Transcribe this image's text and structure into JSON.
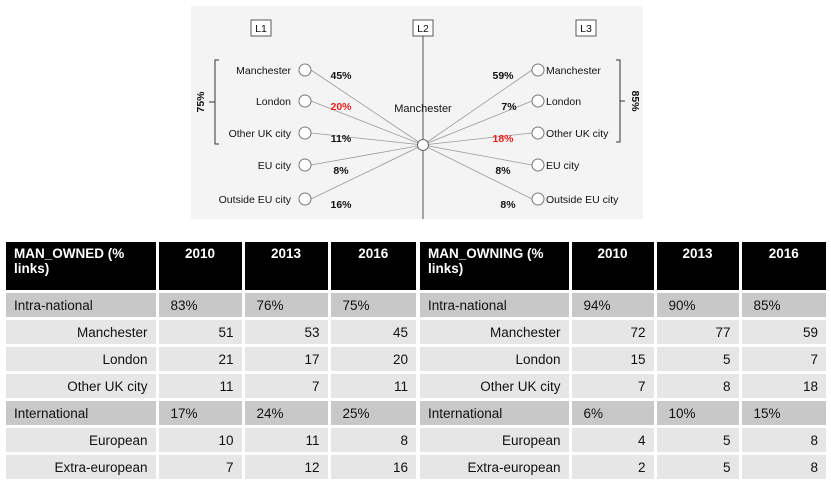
{
  "diagram": {
    "level_labels": [
      "L1",
      "L2",
      "L3"
    ],
    "center_label": "Manchester",
    "left_bracket_label": "75%",
    "right_bracket_label": "85%",
    "left_nodes": [
      {
        "name": "Manchester",
        "pct": "45%",
        "highlight": false
      },
      {
        "name": "London",
        "pct": "20%",
        "highlight": true
      },
      {
        "name": "Other UK city",
        "pct": "11%",
        "highlight": false
      },
      {
        "name": "EU city",
        "pct": "8%",
        "highlight": false
      },
      {
        "name": "Outside EU city",
        "pct": "16%",
        "highlight": false
      }
    ],
    "right_nodes": [
      {
        "name": "Manchester",
        "pct": "59%",
        "highlight": false
      },
      {
        "name": "London",
        "pct": "7%",
        "highlight": false
      },
      {
        "name": "Other UK city",
        "pct": "18%",
        "highlight": true
      },
      {
        "name": "EU city",
        "pct": "8%",
        "highlight": false
      },
      {
        "name": "Outside EU city",
        "pct": "8%",
        "highlight": false
      }
    ],
    "colors": {
      "highlight": "#e8201c",
      "line": "#999999",
      "background": "#f4f4f4"
    }
  },
  "table_owned": {
    "header": [
      "MAN_OWNED (% links)",
      "2010",
      "2013",
      "2016"
    ],
    "rows": [
      {
        "label": "Intra-national",
        "values": [
          "83%",
          "76%",
          "75%"
        ],
        "type": "group"
      },
      {
        "label": "Manchester",
        "values": [
          "51",
          "53",
          "45"
        ],
        "type": "item"
      },
      {
        "label": "London",
        "values": [
          "21",
          "17",
          "20"
        ],
        "type": "item"
      },
      {
        "label": "Other UK city",
        "values": [
          "11",
          "7",
          "11"
        ],
        "type": "item"
      },
      {
        "label": "International",
        "values": [
          "17%",
          "24%",
          "25%"
        ],
        "type": "group"
      },
      {
        "label": "European",
        "values": [
          "10",
          "11",
          "8"
        ],
        "type": "item"
      },
      {
        "label": "Extra-european",
        "values": [
          "7",
          "12",
          "16"
        ],
        "type": "item"
      }
    ]
  },
  "table_owning": {
    "header": [
      "MAN_OWNING (% links)",
      "2010",
      "2013",
      "2016"
    ],
    "rows": [
      {
        "label": "Intra-national",
        "values": [
          "94%",
          "90%",
          "85%"
        ],
        "type": "group"
      },
      {
        "label": "Manchester",
        "values": [
          "72",
          "77",
          "59"
        ],
        "type": "item"
      },
      {
        "label": "London",
        "values": [
          "15",
          "5",
          "7"
        ],
        "type": "item"
      },
      {
        "label": "Other UK city",
        "values": [
          "7",
          "8",
          "18"
        ],
        "type": "item"
      },
      {
        "label": "International",
        "values": [
          "6%",
          "10%",
          "15%"
        ],
        "type": "group"
      },
      {
        "label": "European",
        "values": [
          "4",
          "5",
          "8"
        ],
        "type": "item"
      },
      {
        "label": "Extra-european",
        "values": [
          "2",
          "5",
          "8"
        ],
        "type": "item"
      }
    ]
  }
}
